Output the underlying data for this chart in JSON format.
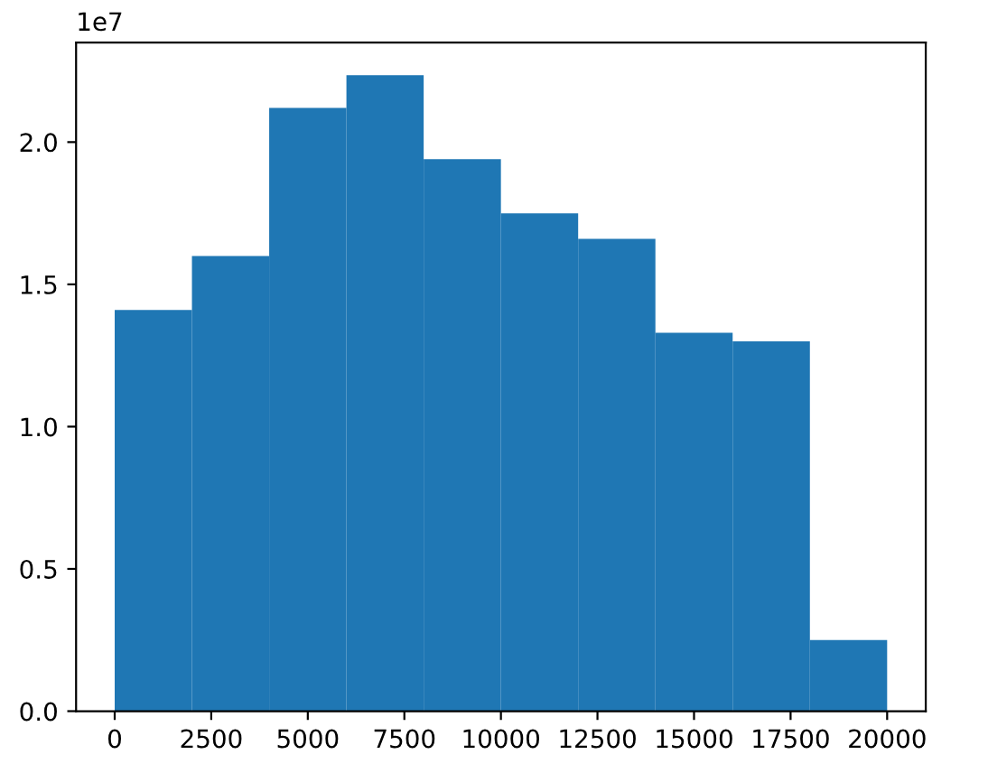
{
  "chart_data": {
    "type": "histogram",
    "bins": [
      0,
      2000,
      4000,
      6000,
      8000,
      10000,
      12000,
      14000,
      16000,
      18000,
      20000
    ],
    "values": [
      1.41,
      1.6,
      2.12,
      2.235,
      1.94,
      1.75,
      1.66,
      1.33,
      1.3,
      0.25
    ],
    "color": "#1f77b4",
    "xlim": [
      -1000,
      21000
    ],
    "xticks": [
      0,
      2500,
      5000,
      7500,
      10000,
      12500,
      15000,
      17500,
      20000
    ],
    "ylim": [
      0,
      2.35
    ],
    "yticks": [
      {
        "value": 0,
        "label": "0.0"
      },
      0.5,
      {
        "value": 1,
        "label": "1.0"
      },
      1.5,
      {
        "value": 2,
        "label": "2.0"
      }
    ],
    "annotations": [
      "1e7"
    ]
  }
}
